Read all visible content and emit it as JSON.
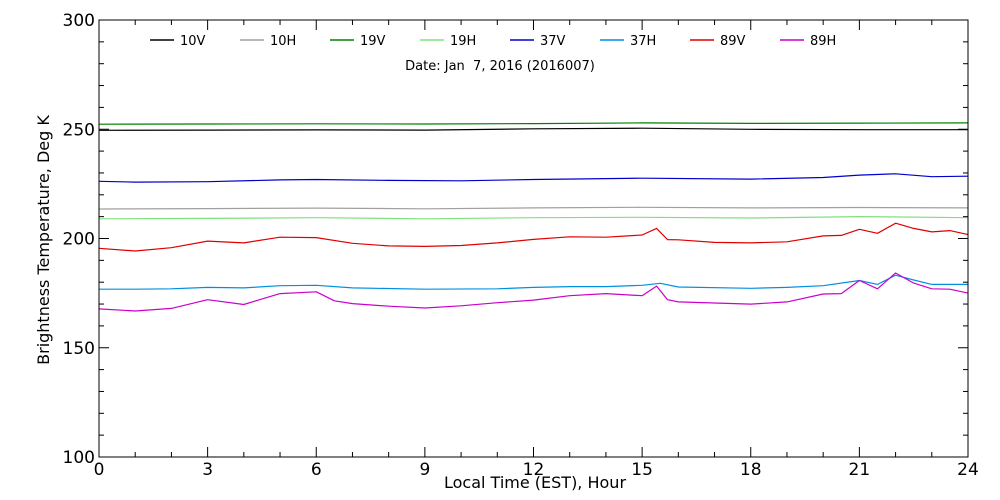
{
  "chart_data": {
    "type": "line",
    "title": "",
    "subtitle": "Date: Jan  7, 2016 (2016007)",
    "xlabel": "Local Time (EST), Hour",
    "ylabel": "Brightness Temperature, Deg K",
    "xlim": [
      0,
      24
    ],
    "ylim": [
      100,
      300
    ],
    "x_ticks": [
      0,
      3,
      6,
      9,
      12,
      15,
      18,
      21,
      24
    ],
    "y_ticks": [
      100,
      150,
      200,
      250,
      300
    ],
    "x_minor_step": 1,
    "y_minor_step": 10,
    "grid": false,
    "legend": "top, single row",
    "series": [
      {
        "name": "10V",
        "color": "#000000",
        "x": [
          0,
          3,
          6,
          9,
          12,
          15,
          18,
          21,
          24
        ],
        "y": [
          249.5,
          249.6,
          249.7,
          249.6,
          250.2,
          250.5,
          250.0,
          249.8,
          249.8
        ]
      },
      {
        "name": "10H",
        "color": "#a0a0a0",
        "x": [
          0,
          3,
          6,
          9,
          12,
          15,
          18,
          21,
          24
        ],
        "y": [
          213.5,
          213.7,
          213.9,
          213.6,
          214.0,
          214.3,
          214.0,
          214.2,
          214.0
        ]
      },
      {
        "name": "19V",
        "color": "#008000",
        "x": [
          0,
          3,
          6,
          9,
          12,
          15,
          18,
          21,
          24
        ],
        "y": [
          252.3,
          252.4,
          252.5,
          252.4,
          252.6,
          252.9,
          252.7,
          252.8,
          252.9
        ]
      },
      {
        "name": "19H",
        "color": "#80e080",
        "x": [
          0,
          3,
          6,
          9,
          12,
          15,
          18,
          21,
          24
        ],
        "y": [
          209.0,
          209.2,
          209.5,
          209.0,
          209.5,
          209.7,
          209.4,
          210.0,
          209.5
        ]
      },
      {
        "name": "37V",
        "color": "#0000cc",
        "x": [
          0,
          1,
          3,
          5,
          6,
          8,
          10,
          12,
          14,
          15,
          18,
          20,
          21,
          22,
          23,
          24
        ],
        "y": [
          226.2,
          225.8,
          226.0,
          226.8,
          227.0,
          226.6,
          226.4,
          227.0,
          227.4,
          227.6,
          227.2,
          227.9,
          229.0,
          229.6,
          228.3,
          228.5
        ]
      },
      {
        "name": "37H",
        "color": "#0090e0",
        "x": [
          0,
          1,
          2,
          3,
          4,
          5,
          6,
          7,
          9,
          11,
          12,
          13,
          14,
          15,
          15.5,
          16,
          18,
          19,
          20,
          21,
          21.5,
          22,
          22.5,
          23,
          24
        ],
        "y": [
          176.8,
          176.8,
          177.0,
          177.6,
          177.4,
          178.4,
          178.6,
          177.4,
          176.8,
          177.0,
          177.6,
          178.0,
          178.0,
          178.6,
          179.5,
          177.8,
          177.2,
          177.6,
          178.4,
          180.8,
          179.0,
          183.2,
          181.0,
          179.0,
          179.0
        ]
      },
      {
        "name": "89V",
        "color": "#e00000",
        "x": [
          0,
          1,
          2,
          3,
          4,
          5,
          6,
          7,
          8,
          9,
          10,
          11,
          12,
          13,
          14,
          15,
          15.4,
          15.7,
          16,
          17,
          18,
          19,
          20,
          20.5,
          21,
          21.5,
          22,
          22.5,
          23,
          23.5,
          24
        ],
        "y": [
          195.5,
          194.3,
          195.8,
          198.8,
          198.0,
          200.6,
          200.4,
          197.8,
          196.6,
          196.4,
          196.8,
          198.0,
          199.6,
          200.8,
          200.6,
          201.6,
          204.6,
          199.5,
          199.4,
          198.2,
          198.0,
          198.5,
          201.2,
          201.4,
          204.2,
          202.4,
          207.0,
          204.6,
          203.0,
          203.6,
          201.8
        ]
      },
      {
        "name": "89H",
        "color": "#cc00cc",
        "x": [
          0,
          1,
          2,
          3,
          4,
          5,
          6,
          6.5,
          7,
          8,
          9,
          10,
          11,
          12,
          13,
          14,
          15,
          15.4,
          15.7,
          16,
          18,
          19,
          20,
          20.5,
          21,
          21.5,
          22,
          22.5,
          23,
          23.5,
          24
        ],
        "y": [
          167.8,
          166.8,
          168.0,
          172.0,
          169.8,
          174.8,
          175.6,
          171.5,
          170.2,
          169.0,
          168.2,
          169.2,
          170.6,
          171.8,
          173.8,
          174.8,
          173.8,
          178.2,
          172.0,
          171.0,
          170.0,
          171.0,
          174.6,
          174.8,
          180.8,
          177.0,
          184.2,
          179.6,
          177.0,
          176.8,
          175.0
        ]
      }
    ]
  }
}
